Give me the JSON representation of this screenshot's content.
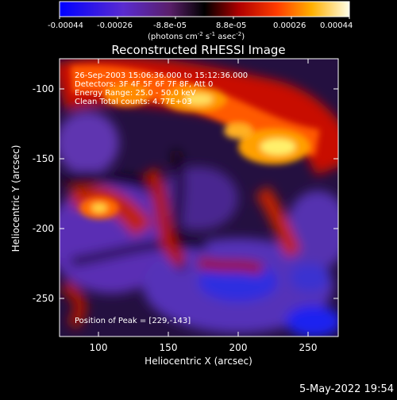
{
  "colorbar": {
    "ticks": [
      "-0.00044",
      "-0.00026",
      "-8.8e-05",
      "8.8e-05",
      "0.00026",
      "0.00044"
    ],
    "units_label": "(photons cm",
    "units_exp1": "-2",
    "units_mid": " s",
    "units_exp2": "-1",
    "units_end": " asec",
    "units_exp3": "-2",
    "units_close": ")"
  },
  "title": "Reconstructed RHESSI Image",
  "info": {
    "line1": "26-Sep-2003 15:06:36.000 to 15:12:36.000",
    "line2": "Detectors: 3F 4F 5F 6F 7F 8F, Att 0",
    "line3": "Energy Range: 25.0 - 50.0 keV",
    "line4": "Clean    Total counts: 4.77E+03"
  },
  "peak_text": "Position of Peak = [229,-143]",
  "axes": {
    "xlabel": "Heliocentric X (arcsec)",
    "ylabel": "Heliocentric Y (arcsec)",
    "xticks": [
      "100",
      "150",
      "200",
      "250"
    ],
    "yticks": [
      "-100",
      "-150",
      "-200",
      "-250"
    ]
  },
  "footer_date": "5-May-2022 19:54"
}
